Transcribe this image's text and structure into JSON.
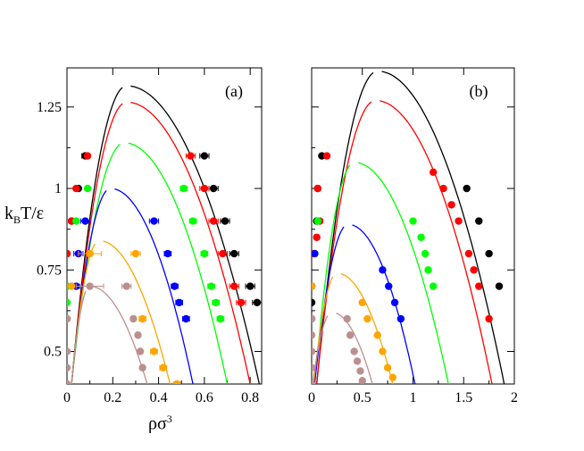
{
  "figure": {
    "ylabel_main": "k",
    "ylabel_sub": "B",
    "ylabel_rest": "T/ε",
    "xlabel_main": "ρσ",
    "xlabel_sup": "3"
  },
  "chart_data": [
    {
      "type": "scatter",
      "panel_label": "(a)",
      "xlim": [
        0,
        0.85
      ],
      "ylim": [
        0.4,
        1.37
      ],
      "xticks": [
        0,
        0.2,
        0.4,
        0.6,
        0.8
      ],
      "xtick_labels": [
        "0",
        "0.2",
        "0.4",
        "0.6",
        "0.8"
      ],
      "yticks": [
        0.5,
        0.75,
        1,
        1.25
      ],
      "ytick_labels": [
        "0.5",
        "0.75",
        "1",
        "1.25"
      ],
      "grid": false,
      "xlabel": "ρσ3",
      "ylabel": "kBT/ε",
      "series": [
        {
          "name": "black",
          "color": "#000000",
          "tc": 1.315,
          "rhoc": 0.26,
          "left": [
            0.02,
            0.05,
            0.08
          ],
          "right": [
            0.6,
            0.72,
            0.84
          ],
          "points": [
            [
              0.08,
              1.1
            ],
            [
              0.05,
              1.0
            ],
            [
              0.02,
              0.9
            ],
            [
              0.0,
              0.8
            ],
            [
              0.0,
              0.7
            ],
            [
              0.6,
              1.1
            ],
            [
              0.64,
              1.0
            ],
            [
              0.69,
              0.9
            ],
            [
              0.73,
              0.8
            ],
            [
              0.8,
              0.7
            ],
            [
              0.83,
              0.65
            ]
          ],
          "xerr": [
            0.015,
            0.01,
            0.01,
            0.005,
            0.005,
            0.02,
            0.02,
            0.02,
            0.02,
            0.02,
            0.02
          ]
        },
        {
          "name": "red",
          "color": "#ff0000",
          "tc": 1.265,
          "rhoc": 0.26,
          "left": [
            0.02,
            0.05,
            0.08
          ],
          "right": [
            0.55,
            0.68,
            0.8
          ],
          "points": [
            [
              0.09,
              1.1
            ],
            [
              0.04,
              1.0
            ],
            [
              0.02,
              0.9
            ],
            [
              0.0,
              0.8
            ],
            [
              0.0,
              0.7
            ],
            [
              0.54,
              1.1
            ],
            [
              0.6,
              1.0
            ],
            [
              0.64,
              0.9
            ],
            [
              0.68,
              0.8
            ],
            [
              0.73,
              0.7
            ],
            [
              0.76,
              0.65
            ]
          ],
          "xerr": [
            0.01,
            0.01,
            0.01,
            0.005,
            0.005,
            0.02,
            0.02,
            0.02,
            0.02,
            0.02,
            0.02
          ]
        },
        {
          "name": "green",
          "color": "#00ff00",
          "tc": 1.14,
          "rhoc": 0.25,
          "left": [
            0.02,
            0.05,
            0.08
          ],
          "right": [
            0.5,
            0.6,
            0.7
          ],
          "points": [
            [
              0.09,
              1.0
            ],
            [
              0.04,
              0.9
            ],
            [
              0.0,
              0.7
            ],
            [
              0.0,
              0.65
            ],
            [
              0.0,
              0.6
            ],
            [
              0.51,
              1.0
            ],
            [
              0.55,
              0.9
            ],
            [
              0.6,
              0.8
            ],
            [
              0.63,
              0.7
            ],
            [
              0.65,
              0.65
            ],
            [
              0.67,
              0.6
            ]
          ],
          "xerr": [
            0.01,
            0.01,
            0.005,
            0.005,
            0.005,
            0.015,
            0.015,
            0.015,
            0.015,
            0.015,
            0.015
          ]
        },
        {
          "name": "blue",
          "color": "#0000ff",
          "tc": 1.0,
          "rhoc": 0.19,
          "left": [
            0.02,
            0.05,
            0.08
          ],
          "right": [
            0.4,
            0.48,
            0.55
          ],
          "points": [
            [
              0.08,
              0.9
            ],
            [
              0.05,
              0.8
            ],
            [
              0.04,
              0.7
            ],
            [
              0.0,
              0.6
            ],
            [
              0.38,
              0.9
            ],
            [
              0.44,
              0.8
            ],
            [
              0.47,
              0.7
            ],
            [
              0.49,
              0.65
            ],
            [
              0.52,
              0.6
            ]
          ],
          "xerr": [
            0.02,
            0.02,
            0.015,
            0.005,
            0.02,
            0.015,
            0.015,
            0.015,
            0.015
          ]
        },
        {
          "name": "orange",
          "color": "#ffa500",
          "tc": 0.84,
          "rhoc": 0.14,
          "left": [
            0.02,
            0.04,
            0.06
          ],
          "right": [
            0.27,
            0.36,
            0.45
          ],
          "points": [
            [
              0.1,
              0.8
            ],
            [
              0.02,
              0.7
            ],
            [
              0.0,
              0.6
            ],
            [
              0.0,
              0.5
            ],
            [
              0.0,
              0.4
            ],
            [
              0.3,
              0.8
            ],
            [
              0.33,
              0.6
            ],
            [
              0.38,
              0.5
            ],
            [
              0.42,
              0.45
            ],
            [
              0.48,
              0.4
            ]
          ],
          "xerr": [
            0.05,
            0.01,
            0.005,
            0.005,
            0.005,
            0.02,
            0.015,
            0.015,
            0.015,
            0.015
          ]
        },
        {
          "name": "brown",
          "color": "#bc8f8f",
          "tc": 0.7,
          "rhoc": 0.1,
          "left": [
            0.02,
            0.04,
            0.06
          ],
          "right": [
            0.18,
            0.27,
            0.35
          ],
          "points": [
            [
              0.1,
              0.7
            ],
            [
              0.0,
              0.6
            ],
            [
              0.0,
              0.5
            ],
            [
              0.0,
              0.45
            ],
            [
              0.0,
              0.4
            ],
            [
              0.26,
              0.7
            ],
            [
              0.29,
              0.6
            ],
            [
              0.31,
              0.55
            ],
            [
              0.32,
              0.5
            ],
            [
              0.33,
              0.45
            ]
          ],
          "xerr": [
            0.06,
            0.005,
            0.005,
            0.005,
            0.005,
            0.02,
            0.01,
            0.01,
            0.01,
            0.01
          ]
        }
      ]
    },
    {
      "type": "scatter",
      "panel_label": "(b)",
      "xlim": [
        0,
        2
      ],
      "ylim": [
        0.4,
        1.37
      ],
      "xticks": [
        0,
        0.5,
        1,
        1.5,
        2
      ],
      "xtick_labels": [
        "0",
        "0.5",
        "1",
        "1.5",
        "2"
      ],
      "yticks": [
        0.5,
        0.75,
        1,
        1.25
      ],
      "ytick_labels": [],
      "grid": false,
      "series": [
        {
          "name": "black",
          "color": "#000000",
          "tc": 1.36,
          "rhoc": 0.65,
          "left": [
            0.05,
            0.12,
            0.2
          ],
          "right": [
            1.3,
            1.6,
            1.9
          ],
          "points": [
            [
              0.1,
              1.1
            ],
            [
              0.06,
              1.0
            ],
            [
              0.05,
              0.9
            ],
            [
              0.03,
              0.8
            ],
            [
              0.0,
              0.7
            ],
            [
              0.0,
              0.65
            ],
            [
              1.53,
              1.0
            ],
            [
              1.65,
              0.9
            ],
            [
              1.75,
              0.8
            ],
            [
              1.85,
              0.7
            ]
          ],
          "xerr": [
            0.01,
            0.01,
            0.01,
            0.01,
            0.005,
            0.005,
            0.02,
            0.02,
            0.02,
            0.02
          ]
        },
        {
          "name": "red",
          "color": "#ff0000",
          "tc": 1.27,
          "rhoc": 0.63,
          "left": [
            0.05,
            0.12,
            0.2
          ],
          "right": [
            1.2,
            1.5,
            1.78
          ],
          "points": [
            [
              0.15,
              1.1
            ],
            [
              0.06,
              1.0
            ],
            [
              0.08,
              0.9
            ],
            [
              0.05,
              0.85
            ],
            [
              0.0,
              0.8
            ],
            [
              0.0,
              0.7
            ],
            [
              1.2,
              1.05
            ],
            [
              1.3,
              1.0
            ],
            [
              1.38,
              0.95
            ],
            [
              1.45,
              0.9
            ],
            [
              1.55,
              0.8
            ],
            [
              1.6,
              0.75
            ],
            [
              1.65,
              0.7
            ],
            [
              1.75,
              0.6
            ]
          ],
          "xerr": [
            0.01,
            0.01,
            0.01,
            0.01,
            0.005,
            0.005,
            0.02,
            0.02,
            0.02,
            0.02,
            0.02,
            0.02,
            0.02,
            0.02
          ]
        },
        {
          "name": "green",
          "color": "#00ff00",
          "tc": 1.08,
          "rhoc": 0.42,
          "left": [
            0.03,
            0.08,
            0.14
          ],
          "right": [
            0.8,
            1.1,
            1.35
          ],
          "points": [
            [
              0.06,
              0.9
            ],
            [
              0.03,
              0.8
            ],
            [
              1.0,
              0.9
            ],
            [
              1.08,
              0.85
            ],
            [
              1.12,
              0.8
            ],
            [
              1.15,
              0.75
            ],
            [
              1.2,
              0.7
            ]
          ],
          "xerr": [
            0.01,
            0.01,
            0.02,
            0.02,
            0.02,
            0.02,
            0.02
          ]
        },
        {
          "name": "blue",
          "color": "#0000ff",
          "tc": 0.89,
          "rhoc": 0.36,
          "left": [
            0.03,
            0.08,
            0.13
          ],
          "right": [
            0.6,
            0.82,
            1.02
          ],
          "points": [
            [
              0.03,
              0.8
            ],
            [
              0.0,
              0.7
            ],
            [
              0.0,
              0.6
            ],
            [
              0.7,
              0.75
            ],
            [
              0.76,
              0.7
            ],
            [
              0.82,
              0.65
            ],
            [
              0.88,
              0.6
            ]
          ],
          "xerr": [
            0.01,
            0.005,
            0.005,
            0.02,
            0.02,
            0.02,
            0.02
          ]
        },
        {
          "name": "orange",
          "color": "#ffa500",
          "tc": 0.74,
          "rhoc": 0.25,
          "left": [
            0.02,
            0.05,
            0.09
          ],
          "right": [
            0.45,
            0.64,
            0.8
          ],
          "points": [
            [
              0.0,
              0.7
            ],
            [
              0.0,
              0.6
            ],
            [
              0.0,
              0.5
            ],
            [
              0.0,
              0.45
            ],
            [
              0.0,
              0.4
            ],
            [
              0.5,
              0.65
            ],
            [
              0.55,
              0.6
            ],
            [
              0.65,
              0.55
            ],
            [
              0.7,
              0.5
            ],
            [
              0.75,
              0.45
            ],
            [
              0.8,
              0.42
            ]
          ],
          "xerr": [
            0.005,
            0.005,
            0.005,
            0.005,
            0.005,
            0.02,
            0.02,
            0.02,
            0.02,
            0.02,
            0.02
          ]
        },
        {
          "name": "brown",
          "color": "#bc8f8f",
          "tc": 0.62,
          "rhoc": 0.2,
          "left": [
            0.01,
            0.04,
            0.07
          ],
          "right": [
            0.32,
            0.48,
            0.6
          ],
          "points": [
            [
              0.0,
              0.6
            ],
            [
              0.0,
              0.55
            ],
            [
              0.0,
              0.5
            ],
            [
              0.0,
              0.45
            ],
            [
              0.0,
              0.4
            ],
            [
              0.35,
              0.6
            ],
            [
              0.38,
              0.55
            ],
            [
              0.42,
              0.5
            ],
            [
              0.45,
              0.47
            ],
            [
              0.48,
              0.44
            ],
            [
              0.5,
              0.41
            ]
          ],
          "xerr": [
            0.005,
            0.005,
            0.005,
            0.005,
            0.005,
            0.015,
            0.015,
            0.015,
            0.015,
            0.015,
            0.015
          ]
        }
      ]
    }
  ]
}
